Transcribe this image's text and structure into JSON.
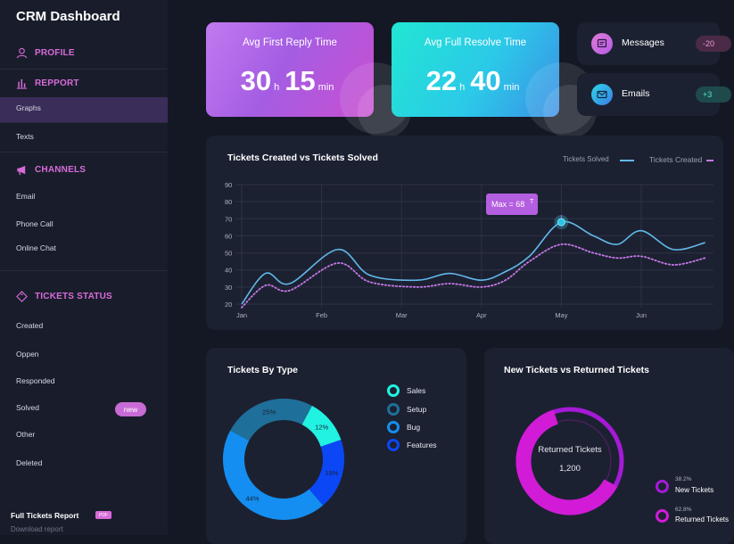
{
  "app": {
    "title": "CRM Dashboard"
  },
  "sidebar": {
    "profile": "PROFILE",
    "report": "REPPORT",
    "report_items": [
      "Graphs",
      "Texts"
    ],
    "channels": "CHANNELS",
    "channel_items": [
      "Email",
      "Phone Call",
      "Online Chat"
    ],
    "tickets_status": "TICKETS STATUS",
    "status_items": [
      "Created",
      "Oppen",
      "Responded",
      "Solved",
      "Other",
      "Deleted"
    ],
    "new_badge": "new",
    "full_report": "Full Tickets Report",
    "pdf_badge": "PDF",
    "download": "Download report"
  },
  "stats": {
    "first_reply": {
      "label": "Avg First Reply Time",
      "hours": "30",
      "h_unit": "h",
      "minutes": "15",
      "min_unit": "min"
    },
    "full_resolve": {
      "label": "Avg Full Resolve Time",
      "hours": "22",
      "h_unit": "h",
      "minutes": "40",
      "min_unit": "min"
    }
  },
  "mini": {
    "messages": {
      "label": "Messages",
      "badge": "-20"
    },
    "emails": {
      "label": "Emails",
      "badge": "+3"
    }
  },
  "colors": {
    "accent_pink": "#d86bd9",
    "solved_line": "#61b8ea",
    "created_line": "#c678e8",
    "magenta": "#d21bd7"
  },
  "chart_data": [
    {
      "type": "line",
      "title": "Tickets Created vs Tickets Solved",
      "x": [
        "Jan",
        "Feb",
        "Mar",
        "Apr",
        "May",
        "Jun"
      ],
      "ylim": [
        20,
        90
      ],
      "yticks": [
        20,
        30,
        40,
        50,
        60,
        70,
        80,
        90
      ],
      "grid": true,
      "legend_placement": "top-right",
      "series": [
        {
          "name": "Tickets Solved",
          "points": [
            [
              0,
              20
            ],
            [
              0.3,
              38
            ],
            [
              0.6,
              32
            ],
            [
              1.2,
              52
            ],
            [
              1.6,
              37
            ],
            [
              2.2,
              34
            ],
            [
              2.6,
              38
            ],
            [
              3.0,
              34
            ],
            [
              3.3,
              39
            ],
            [
              3.6,
              48
            ],
            [
              4.0,
              68
            ],
            [
              4.4,
              60
            ],
            [
              4.7,
              55
            ],
            [
              5.0,
              63
            ],
            [
              5.4,
              52
            ],
            [
              5.8,
              56
            ]
          ]
        },
        {
          "name": "Tickets Created",
          "points": [
            [
              0,
              18
            ],
            [
              0.3,
              31
            ],
            [
              0.6,
              28
            ],
            [
              1.2,
              44
            ],
            [
              1.6,
              33
            ],
            [
              2.2,
              30
            ],
            [
              2.6,
              32
            ],
            [
              3.0,
              30
            ],
            [
              3.3,
              34
            ],
            [
              3.6,
              45
            ],
            [
              4.0,
              55
            ],
            [
              4.4,
              50
            ],
            [
              4.7,
              47
            ],
            [
              5.0,
              48
            ],
            [
              5.4,
              43
            ],
            [
              5.8,
              47
            ]
          ]
        }
      ],
      "annotation": {
        "text": "Max = 68",
        "x": 4.0,
        "y": 68
      }
    },
    {
      "type": "pie",
      "title": "Tickets By Type",
      "slices": [
        {
          "name": "Sales",
          "value": 12,
          "label": "12%",
          "color": "#21f2e2"
        },
        {
          "name": "Setup",
          "value": 25,
          "label": "25%",
          "color": "#1e6f99"
        },
        {
          "name": "Bug",
          "value": 44,
          "label": "44%",
          "color": "#148ef0"
        },
        {
          "name": "Features",
          "value": 19,
          "label": "19%",
          "color": "#0b47f5"
        }
      ]
    },
    {
      "type": "pie",
      "title": "New Tickets vs Returned Tickets",
      "center_label": "Returned Tickets",
      "center_value": "1,200",
      "slices": [
        {
          "name": "New Tickets",
          "value": 38.2,
          "label": "38.2%",
          "color": "#a51ad6"
        },
        {
          "name": "Returned Tickets",
          "value": 62.8,
          "label": "62.8%",
          "color": "#d21bd7"
        }
      ]
    }
  ]
}
